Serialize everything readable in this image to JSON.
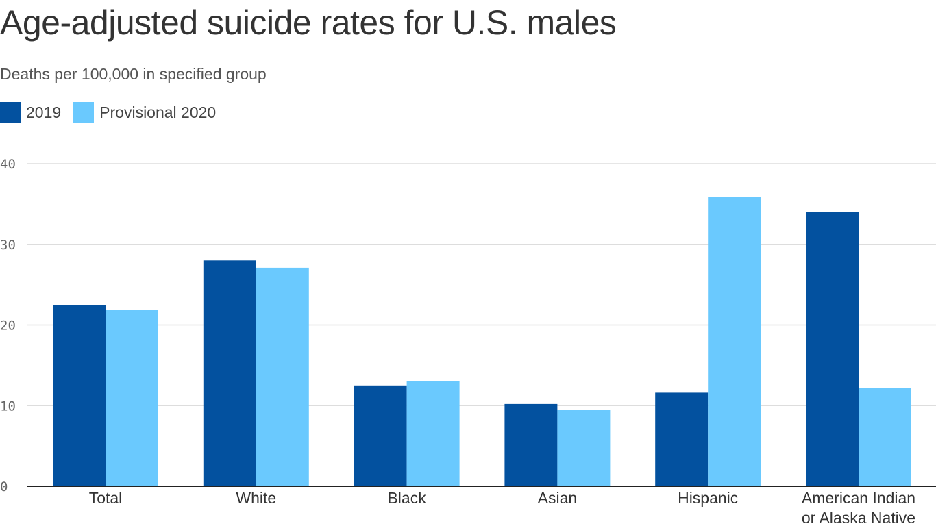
{
  "chart_data": {
    "type": "bar",
    "title": "Age-adjusted suicide rates for U.S. males",
    "subtitle": "Deaths per 100,000 in specified group",
    "categories": [
      "Total",
      "White",
      "Black",
      "Asian",
      "Hispanic",
      "American Indian or Alaska Native"
    ],
    "category_lines": [
      [
        "Total"
      ],
      [
        "White"
      ],
      [
        "Black"
      ],
      [
        "Asian"
      ],
      [
        "Hispanic"
      ],
      [
        "American Indian",
        "or Alaska Native"
      ]
    ],
    "series": [
      {
        "name": "2019",
        "color": "#03519f",
        "values": [
          22.5,
          28.0,
          12.5,
          10.2,
          11.6,
          34.0
        ]
      },
      {
        "name": "Provisional 2020",
        "color": "#6ac9fe",
        "values": [
          21.9,
          27.1,
          13.0,
          9.5,
          35.9,
          12.2
        ]
      }
    ],
    "yticks": [
      0,
      10,
      20,
      30,
      40
    ],
    "ytick_labels": [
      "0",
      "10",
      "20",
      "30",
      "40"
    ],
    "ylim": [
      0,
      40
    ],
    "xlabel": "",
    "ylabel": "",
    "grid": true,
    "legend_position": "top-left"
  }
}
